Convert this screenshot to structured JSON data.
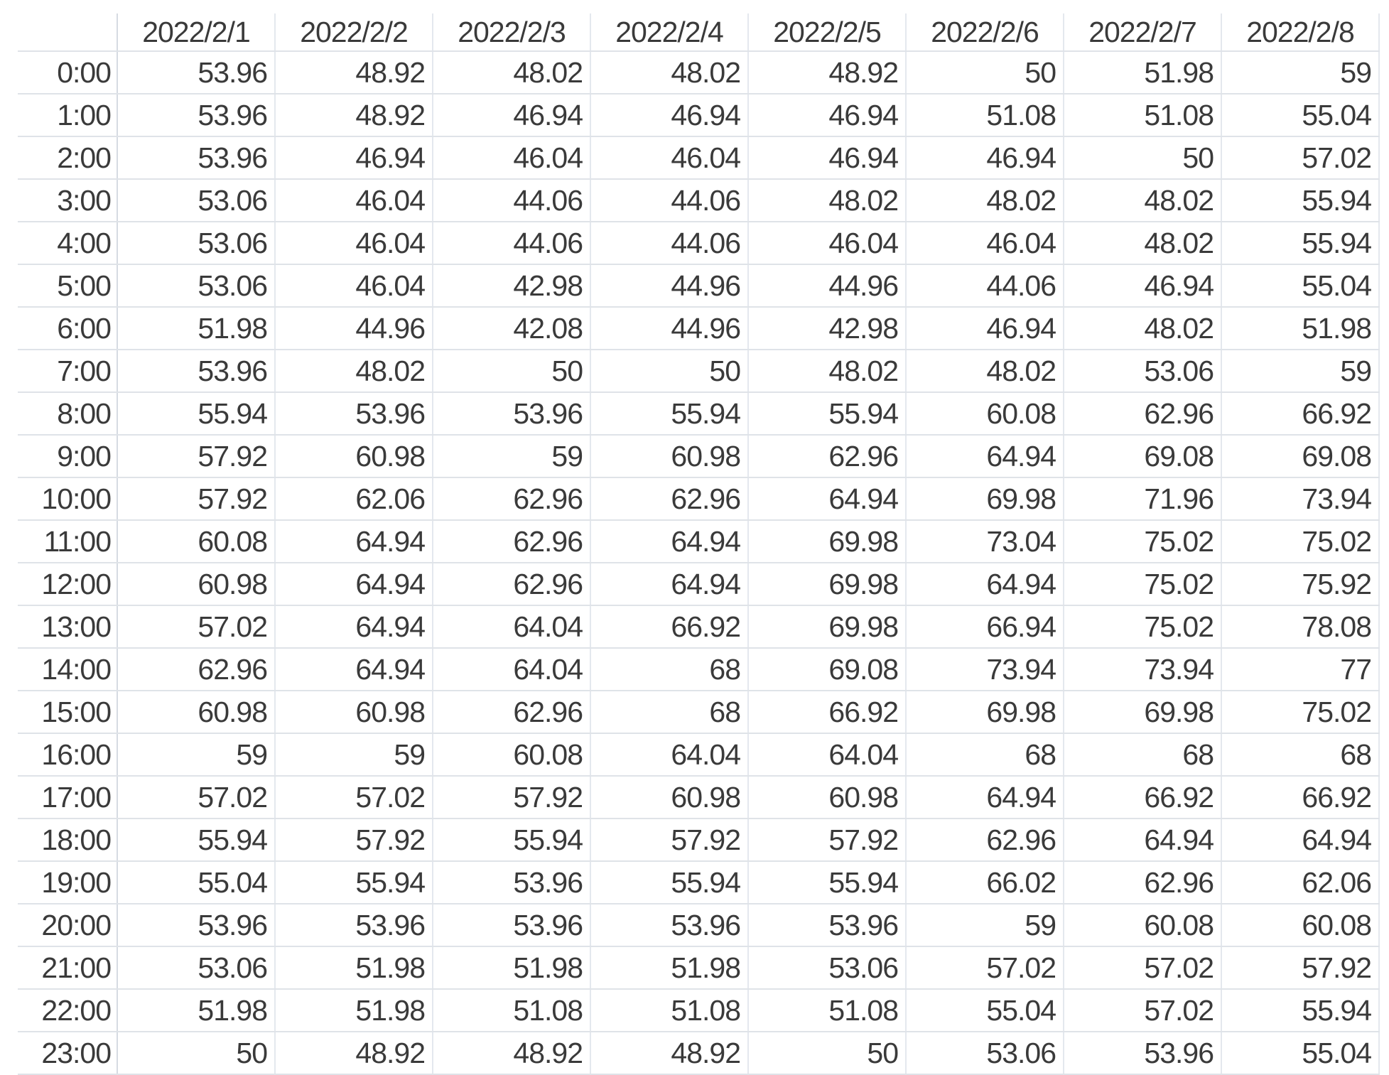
{
  "columns": [
    "2022/2/1",
    "2022/2/2",
    "2022/2/3",
    "2022/2/4",
    "2022/2/5",
    "2022/2/6",
    "2022/2/7",
    "2022/2/8"
  ],
  "rows": [
    {
      "time": "0:00",
      "values": [
        "53.96",
        "48.92",
        "48.02",
        "48.02",
        "48.92",
        "50",
        "51.98",
        "59"
      ]
    },
    {
      "time": "1:00",
      "values": [
        "53.96",
        "48.92",
        "46.94",
        "46.94",
        "46.94",
        "51.08",
        "51.08",
        "55.04"
      ]
    },
    {
      "time": "2:00",
      "values": [
        "53.96",
        "46.94",
        "46.04",
        "46.04",
        "46.94",
        "46.94",
        "50",
        "57.02"
      ]
    },
    {
      "time": "3:00",
      "values": [
        "53.06",
        "46.04",
        "44.06",
        "44.06",
        "48.02",
        "48.02",
        "48.02",
        "55.94"
      ]
    },
    {
      "time": "4:00",
      "values": [
        "53.06",
        "46.04",
        "44.06",
        "44.06",
        "46.04",
        "46.04",
        "48.02",
        "55.94"
      ]
    },
    {
      "time": "5:00",
      "values": [
        "53.06",
        "46.04",
        "42.98",
        "44.96",
        "44.96",
        "44.06",
        "46.94",
        "55.04"
      ]
    },
    {
      "time": "6:00",
      "values": [
        "51.98",
        "44.96",
        "42.08",
        "44.96",
        "42.98",
        "46.94",
        "48.02",
        "51.98"
      ]
    },
    {
      "time": "7:00",
      "values": [
        "53.96",
        "48.02",
        "50",
        "50",
        "48.02",
        "48.02",
        "53.06",
        "59"
      ]
    },
    {
      "time": "8:00",
      "values": [
        "55.94",
        "53.96",
        "53.96",
        "55.94",
        "55.94",
        "60.08",
        "62.96",
        "66.92"
      ]
    },
    {
      "time": "9:00",
      "values": [
        "57.92",
        "60.98",
        "59",
        "60.98",
        "62.96",
        "64.94",
        "69.08",
        "69.08"
      ]
    },
    {
      "time": "10:00",
      "values": [
        "57.92",
        "62.06",
        "62.96",
        "62.96",
        "64.94",
        "69.98",
        "71.96",
        "73.94"
      ]
    },
    {
      "time": "11:00",
      "values": [
        "60.08",
        "64.94",
        "62.96",
        "64.94",
        "69.98",
        "73.04",
        "75.02",
        "75.02"
      ]
    },
    {
      "time": "12:00",
      "values": [
        "60.98",
        "64.94",
        "62.96",
        "64.94",
        "69.98",
        "64.94",
        "75.02",
        "75.92"
      ]
    },
    {
      "time": "13:00",
      "values": [
        "57.02",
        "64.94",
        "64.04",
        "66.92",
        "69.98",
        "66.94",
        "75.02",
        "78.08"
      ]
    },
    {
      "time": "14:00",
      "values": [
        "62.96",
        "64.94",
        "64.04",
        "68",
        "69.08",
        "73.94",
        "73.94",
        "77"
      ]
    },
    {
      "time": "15:00",
      "values": [
        "60.98",
        "60.98",
        "62.96",
        "68",
        "66.92",
        "69.98",
        "69.98",
        "75.02"
      ]
    },
    {
      "time": "16:00",
      "values": [
        "59",
        "59",
        "60.08",
        "64.04",
        "64.04",
        "68",
        "68",
        "68"
      ]
    },
    {
      "time": "17:00",
      "values": [
        "57.02",
        "57.02",
        "57.92",
        "60.98",
        "60.98",
        "64.94",
        "66.92",
        "66.92"
      ]
    },
    {
      "time": "18:00",
      "values": [
        "55.94",
        "57.92",
        "55.94",
        "57.92",
        "57.92",
        "62.96",
        "64.94",
        "64.94"
      ]
    },
    {
      "time": "19:00",
      "values": [
        "55.04",
        "55.94",
        "53.96",
        "55.94",
        "55.94",
        "66.02",
        "62.96",
        "62.06"
      ]
    },
    {
      "time": "20:00",
      "values": [
        "53.96",
        "53.96",
        "53.96",
        "53.96",
        "53.96",
        "59",
        "60.08",
        "60.08"
      ]
    },
    {
      "time": "21:00",
      "values": [
        "53.06",
        "51.98",
        "51.98",
        "51.98",
        "53.06",
        "57.02",
        "57.02",
        "57.92"
      ]
    },
    {
      "time": "22:00",
      "values": [
        "51.98",
        "51.98",
        "51.08",
        "51.08",
        "51.08",
        "55.04",
        "57.02",
        "55.94"
      ]
    },
    {
      "time": "23:00",
      "values": [
        "50",
        "48.92",
        "48.92",
        "48.92",
        "50",
        "53.06",
        "53.96",
        "55.04"
      ]
    }
  ]
}
